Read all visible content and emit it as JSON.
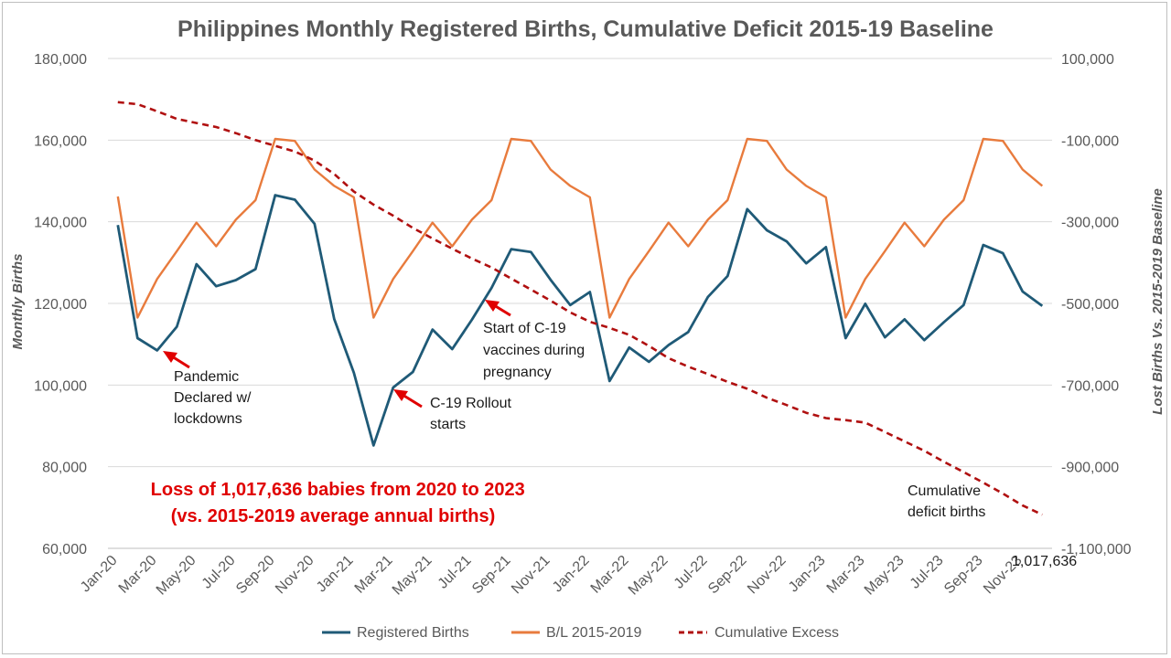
{
  "chart_data": {
    "type": "line",
    "title": "Philippines Monthly Registered Births, Cumulative Deficit 2015-19 Baseline",
    "ylabel": "Monthly Births",
    "y2label": "Lost Births Vs. 2015-2019 Baseline",
    "ylim": [
      60000,
      180000
    ],
    "y2lim": [
      -1100000,
      100000
    ],
    "yticks": [
      "60,000",
      "80,000",
      "100,000",
      "120,000",
      "140,000",
      "160,000",
      "180,000"
    ],
    "y2ticks": [
      "-1,100,000",
      "-900,000",
      "-700,000",
      "-500,000",
      "-300,000",
      "-100,000",
      "100,000"
    ],
    "xtick_labels": [
      "Jan-20",
      "Mar-20",
      "May-20",
      "Jul-20",
      "Sep-20",
      "Nov-20",
      "Jan-21",
      "Mar-21",
      "May-21",
      "Jul-21",
      "Sep-21",
      "Nov-21",
      "Jan-22",
      "Mar-22",
      "May-22",
      "Jul-22",
      "Sep-22",
      "Nov-22",
      "Jan-23",
      "Mar-23",
      "May-23",
      "Jul-23",
      "Sep-23",
      "Nov-23"
    ],
    "grid": true,
    "legend_position": "bottom",
    "colors": {
      "registered": "#1f5a77",
      "baseline": "#e87b3d",
      "cumulative": "#b01010",
      "annotation": "#e00000"
    },
    "series": [
      {
        "name": "Registered Births",
        "axis": "left",
        "values": [
          139200,
          111500,
          108500,
          114300,
          129600,
          124200,
          125700,
          128400,
          146500,
          145400,
          139500,
          116200,
          103000,
          85200,
          99400,
          103200,
          113600,
          108800,
          116000,
          123800,
          133300,
          132600,
          125800,
          119600,
          122800,
          101000,
          109200,
          105700,
          109800,
          113000,
          121600,
          126700,
          143100,
          137900,
          135200,
          129800,
          133800,
          111500,
          119900,
          111700,
          116100,
          111000,
          115400,
          119600,
          134300,
          132300,
          122900,
          119400
        ]
      },
      {
        "name": "B/L 2015-2019",
        "axis": "left",
        "values": [
          146200,
          116500,
          126000,
          132800,
          139800,
          134000,
          140500,
          145300,
          160300,
          159800,
          152800,
          148800,
          146000,
          116500,
          126000,
          132800,
          139800,
          134000,
          140500,
          145300,
          160300,
          159800,
          152800,
          148800,
          146000,
          116500,
          126000,
          132800,
          139800,
          134000,
          140500,
          145300,
          160300,
          159800,
          152800,
          148800,
          146000,
          116500,
          126000,
          132800,
          139800,
          134000,
          140500,
          145300,
          160300,
          159800,
          152800,
          148800
        ]
      },
      {
        "name": "Cumulative Excess",
        "axis": "right",
        "values": [
          -7000,
          -12000,
          -29500,
          -48000,
          -58000,
          -68000,
          -83000,
          -100000,
          -114000,
          -128000,
          -150000,
          -183000,
          -226000,
          -258000,
          -285000,
          -315000,
          -341000,
          -366000,
          -390000,
          -412000,
          -439000,
          -466000,
          -493000,
          -522000,
          -545000,
          -560000,
          -577000,
          -604000,
          -634000,
          -655000,
          -673000,
          -692000,
          -709000,
          -731000,
          -749000,
          -768000,
          -781000,
          -786000,
          -792000,
          -815000,
          -838000,
          -861000,
          -888000,
          -913000,
          -939000,
          -966000,
          -995000,
          -1017636
        ]
      }
    ],
    "annotations": [
      "Pandemic Declared w/ lockdowns",
      "C-19 Rollout starts",
      "Start of C-19 vaccines during pregnancy"
    ],
    "callout": "Loss of 1,017,636 babies from 2020 to 2023 (vs. 2015-2019 average annual births)",
    "end_label": "Cumulative deficit births",
    "end_value_label": "1,017,636"
  },
  "text": {
    "title": "Philippines Monthly Registered Births, Cumulative Deficit 2015-19 Baseline",
    "ylabel": "Monthly Births",
    "y2label": "Lost Births Vs. 2015-2019 Baseline",
    "annotation_pandemic": [
      "Pandemic",
      "Declared w/",
      "lockdowns"
    ],
    "annotation_rollout": [
      "C-19 Rollout",
      "starts"
    ],
    "annotation_vaccines": [
      "Start of C-19",
      "vaccines during",
      "pregnancy"
    ],
    "callout": [
      "Loss of 1,017,636 babies from 2020 to 2023",
      "(vs. 2015-2019 average annual births)"
    ],
    "end_label": [
      "Cumulative",
      "deficit births"
    ],
    "end_value_label": "1,017,636",
    "legend": [
      "Registered Births",
      "B/L 2015-2019",
      "Cumulative Excess"
    ]
  }
}
